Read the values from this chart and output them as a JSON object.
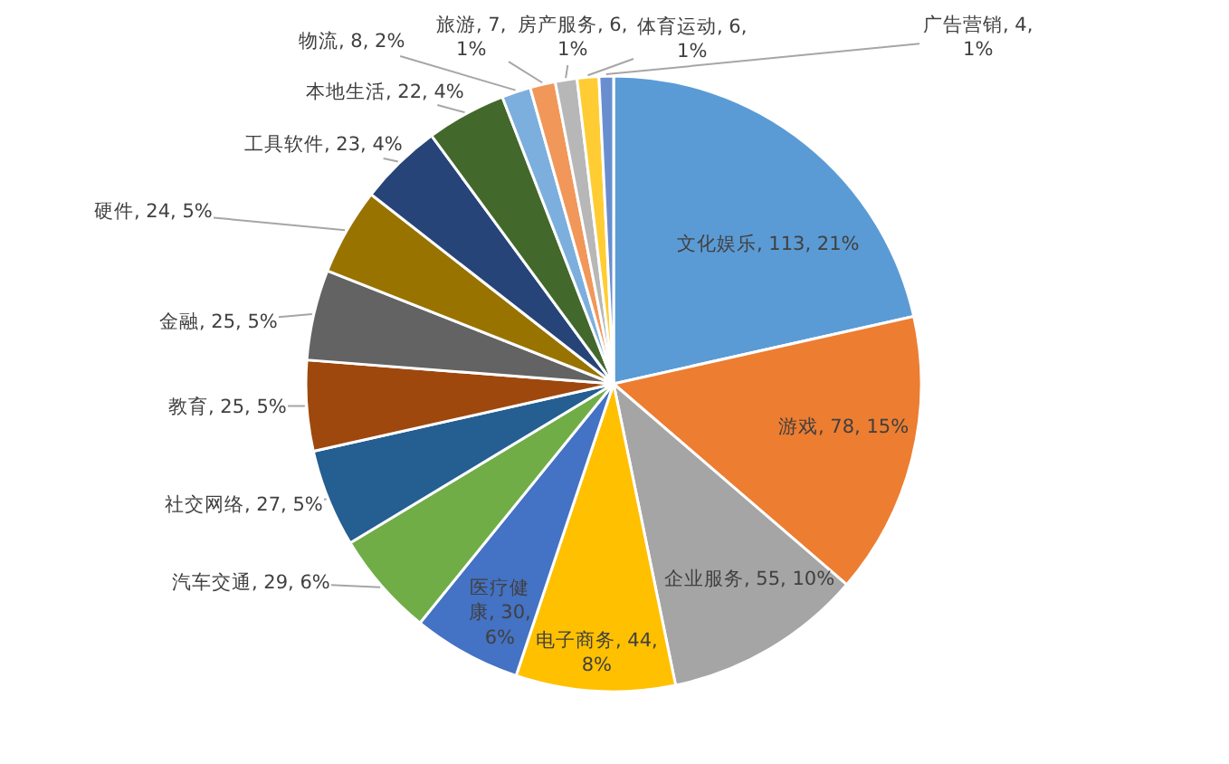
{
  "chart_data": {
    "type": "pie",
    "categories": [
      "文化娱乐",
      "游戏",
      "企业服务",
      "电子商务",
      "医疗健康",
      "汽车交通",
      "社交网络",
      "教育",
      "金融",
      "硬件",
      "工具软件",
      "本地生活",
      "物流",
      "旅游",
      "房产服务",
      "体育运动",
      "广告营销"
    ],
    "values": [
      113,
      78,
      55,
      44,
      30,
      29,
      27,
      25,
      25,
      24,
      23,
      22,
      8,
      7,
      6,
      6,
      4
    ],
    "value_labels": [
      "113, 21%",
      "78, 15%",
      "55, 10%",
      "44, 8%",
      "30, 6%",
      "29, 6%",
      "27, 5%",
      "25, 5%",
      "25, 5%",
      "24, 5%",
      "23, 4%",
      "22, 4%",
      "8, 2%",
      "7, 1%",
      "6, 1%",
      "6, 1%",
      "4, 1%"
    ],
    "colors": [
      "#5b9bd5",
      "#ed7d31",
      "#a5a5a5",
      "#ffc000",
      "#4472c4",
      "#70ad47",
      "#255e91",
      "#9e480e",
      "#636363",
      "#997300",
      "#264478",
      "#43682b",
      "#7cafdd",
      "#f1975a",
      "#b7b7b7",
      "#ffcd33",
      "#698ed0"
    ]
  }
}
